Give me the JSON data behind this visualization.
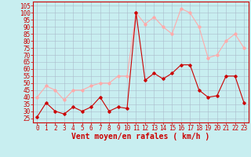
{
  "hours": [
    0,
    1,
    2,
    3,
    4,
    5,
    6,
    7,
    8,
    9,
    10,
    11,
    12,
    13,
    14,
    15,
    16,
    17,
    18,
    19,
    20,
    21,
    22,
    23
  ],
  "wind_avg": [
    26,
    36,
    30,
    28,
    33,
    30,
    33,
    40,
    30,
    33,
    32,
    100,
    52,
    57,
    53,
    57,
    63,
    63,
    45,
    40,
    41,
    55,
    55,
    36
  ],
  "wind_gust": [
    40,
    48,
    45,
    38,
    45,
    45,
    48,
    50,
    50,
    55,
    55,
    100,
    92,
    97,
    90,
    85,
    103,
    100,
    90,
    68,
    70,
    80,
    85,
    75
  ],
  "xlabel": "Vent moyen/en rafales ( km/h )",
  "yticks": [
    25,
    30,
    35,
    40,
    45,
    50,
    55,
    60,
    65,
    70,
    75,
    80,
    85,
    90,
    95,
    100,
    105
  ],
  "ylim": [
    22,
    108
  ],
  "xlim": [
    -0.5,
    23.5
  ],
  "bg_color": "#c8eef0",
  "grid_color": "#aabbcc",
  "avg_color": "#cc0000",
  "gust_color": "#ffaaaa",
  "tick_color": "#cc0000",
  "label_color": "#cc0000",
  "xlabel_fontsize": 7,
  "tick_fontsize": 5.5
}
